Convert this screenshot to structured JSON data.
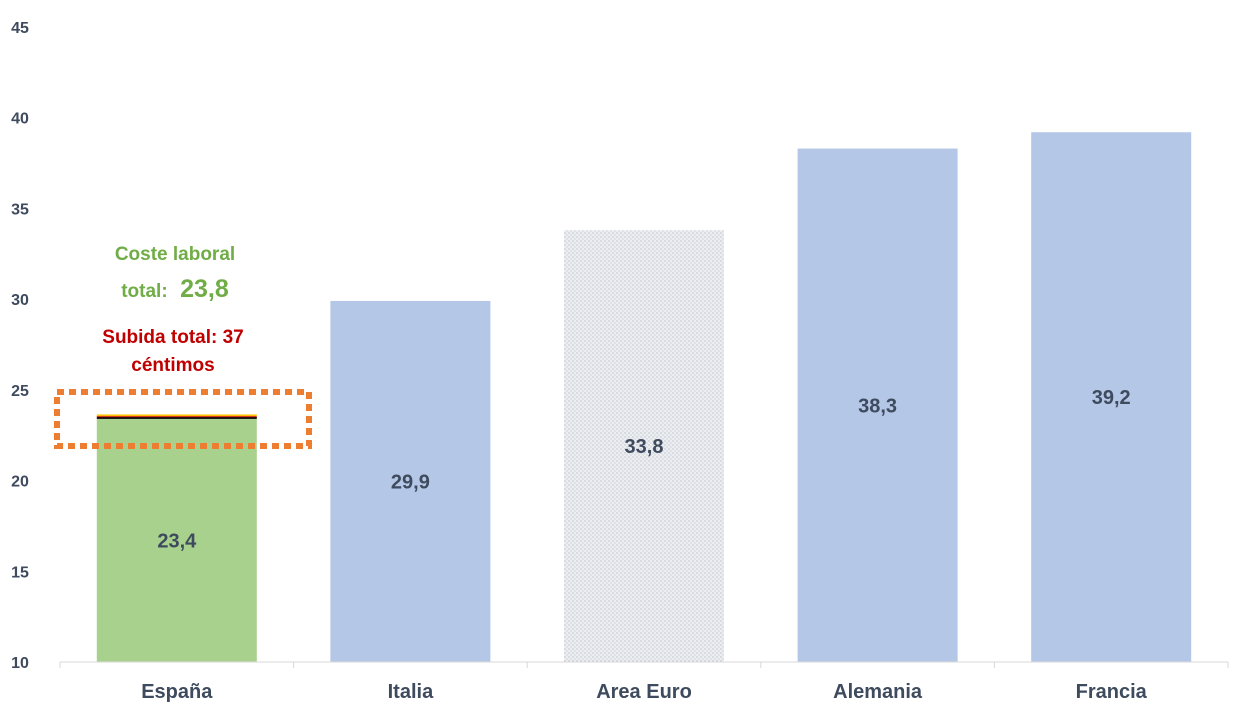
{
  "chart_data": {
    "type": "bar",
    "categories": [
      "España",
      "Italia",
      "Area Euro",
      "Alemania",
      "Francia"
    ],
    "values": [
      23.4,
      29.9,
      33.8,
      38.3,
      39.2
    ],
    "value_labels": [
      "23,4",
      "29,9",
      "33,8",
      "38,3",
      "39,2"
    ],
    "stacked_increment": {
      "category": "España",
      "base": 23.4,
      "total": 23.8,
      "segments": [
        {
          "value": 0.1,
          "color": "#000000"
        },
        {
          "value": 0.05,
          "color": "#c00000"
        },
        {
          "value": 0.1,
          "color": "#ffc000"
        },
        {
          "value": 0.12,
          "color": "#ffffff"
        }
      ]
    },
    "ylim": [
      10,
      45
    ],
    "yticks": [
      10,
      15,
      20,
      25,
      30,
      35,
      40,
      45
    ],
    "ytick_labels": [
      "10",
      "15",
      "20",
      "25",
      "30",
      "35",
      "40",
      "45"
    ],
    "xlabel": "",
    "ylabel": "",
    "title": "",
    "grid": false,
    "legend": "none",
    "colors": {
      "España": "#a9d18e",
      "Italia": "#b4c7e7",
      "Area Euro": "dotted-gray",
      "Alemania": "#b4c7e7",
      "Francia": "#b4c7e7",
      "highlight_box": "#ed7d31",
      "text": "#3e4a5d",
      "annotation_green": "#70ad47",
      "annotation_red": "#c00000"
    },
    "annotations": {
      "coste_line1": "Coste laboral",
      "coste_line2_prefix": "total:",
      "coste_value": "23,8",
      "subida_line1": "Subida total: 37",
      "subida_line2": "céntimos"
    }
  }
}
